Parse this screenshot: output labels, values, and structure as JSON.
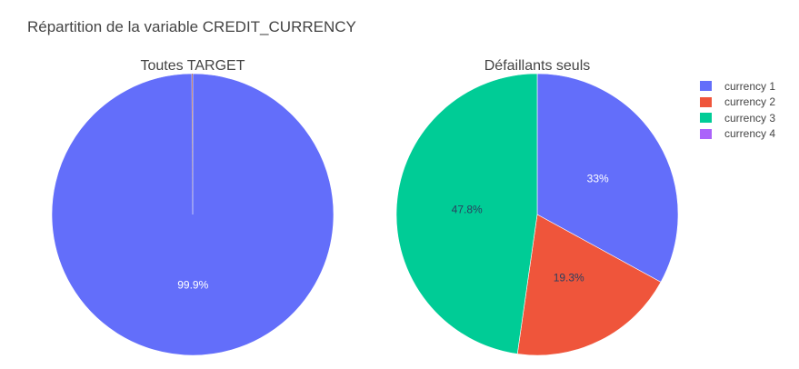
{
  "title": "Répartition de la variable CREDIT_CURRENCY",
  "legend_placement": "top-right",
  "legend": [
    {
      "label": "currency 1",
      "color": "#636efa"
    },
    {
      "label": "currency 2",
      "color": "#ef553b"
    },
    {
      "label": "currency 3",
      "color": "#00cc96"
    },
    {
      "label": "currency 4",
      "color": "#ab63fa"
    }
  ],
  "chart_data": [
    {
      "type": "pie",
      "title": "Toutes TARGET",
      "categories": [
        "currency 1",
        "currency 2",
        "currency 3",
        "currency 4"
      ],
      "values": [
        99.9,
        0.08,
        0.02,
        0.002
      ],
      "labels": [
        "99.9%",
        "",
        "",
        ""
      ],
      "colors": [
        "#636efa",
        "#ef553b",
        "#00cc96",
        "#ab63fa"
      ]
    },
    {
      "type": "pie",
      "title": "Défaillants seuls",
      "categories": [
        "currency 1",
        "currency 2",
        "currency 3",
        "currency 4"
      ],
      "values": [
        33.0,
        19.3,
        47.8,
        0
      ],
      "labels": [
        "33%",
        "19.3%",
        "47.8%",
        ""
      ],
      "colors": [
        "#636efa",
        "#ef553b",
        "#00cc96",
        "#ab63fa"
      ]
    }
  ]
}
